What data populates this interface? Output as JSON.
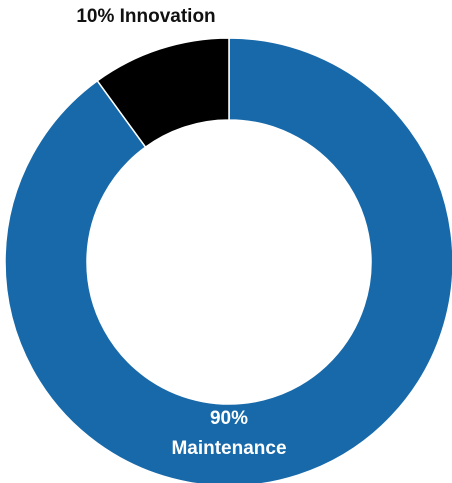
{
  "chart_data": {
    "type": "pie",
    "variant": "donut",
    "slices": [
      {
        "label": "Maintenance",
        "value": 90,
        "percent_text": "90%",
        "color": "#1769AA",
        "label_color": "#FFFFFF"
      },
      {
        "label": "Innovation",
        "value": 10,
        "percent_text": "10% Innovation",
        "color": "#000000",
        "label_color": "#111111"
      }
    ],
    "start": "top",
    "direction": "clockwise",
    "legend": "none",
    "slice_border_color": "#FFFFFF"
  }
}
